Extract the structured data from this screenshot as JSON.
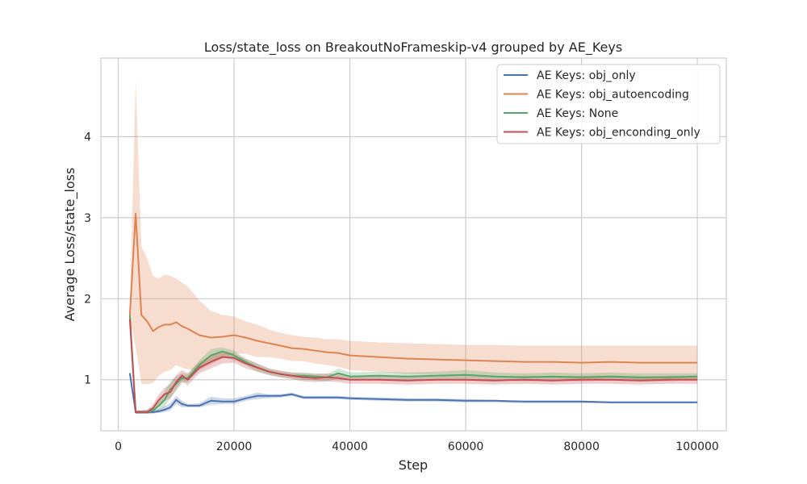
{
  "chart_data": {
    "type": "line",
    "title": "Loss/state_loss on BreakoutNoFrameskip-v4 grouped by AE_Keys",
    "xlabel": "Step",
    "ylabel": "Average Loss/state_loss",
    "xlim": [
      -3000,
      105000
    ],
    "ylim": [
      0.37,
      4.97
    ],
    "xticks": [
      0,
      20000,
      40000,
      60000,
      80000,
      100000
    ],
    "xtick_labels": [
      "0",
      "20000",
      "40000",
      "60000",
      "80000",
      "100000"
    ],
    "yticks": [
      1,
      2,
      3,
      4
    ],
    "ytick_labels": [
      "1",
      "2",
      "3",
      "4"
    ],
    "grid": true,
    "legend_position": "top-right",
    "series": [
      {
        "name": "AE Keys: obj_only",
        "color": "#4c72b0",
        "x": [
          2000,
          3000,
          4000,
          5000,
          6000,
          7000,
          8000,
          9000,
          10000,
          11000,
          12000,
          14000,
          16000,
          18000,
          20000,
          22000,
          24000,
          26000,
          28000,
          30000,
          32000,
          34000,
          36000,
          38000,
          40000,
          45000,
          50000,
          55000,
          60000,
          65000,
          70000,
          75000,
          80000,
          85000,
          90000,
          95000,
          100000
        ],
        "y": [
          1.08,
          0.6,
          0.6,
          0.6,
          0.6,
          0.61,
          0.63,
          0.66,
          0.75,
          0.7,
          0.68,
          0.68,
          0.74,
          0.73,
          0.73,
          0.77,
          0.8,
          0.8,
          0.8,
          0.82,
          0.78,
          0.78,
          0.78,
          0.78,
          0.77,
          0.76,
          0.75,
          0.75,
          0.74,
          0.74,
          0.73,
          0.73,
          0.73,
          0.72,
          0.72,
          0.72,
          0.72
        ],
        "upper": [
          1.1,
          0.62,
          0.62,
          0.62,
          0.63,
          0.64,
          0.67,
          0.71,
          0.8,
          0.74,
          0.7,
          0.71,
          0.79,
          0.77,
          0.77,
          0.8,
          0.84,
          0.82,
          0.82,
          0.84,
          0.8,
          0.8,
          0.8,
          0.8,
          0.79,
          0.78,
          0.77,
          0.77,
          0.76,
          0.75,
          0.74,
          0.74,
          0.74,
          0.73,
          0.73,
          0.73,
          0.73
        ],
        "lower": [
          1.06,
          0.58,
          0.58,
          0.58,
          0.58,
          0.59,
          0.6,
          0.62,
          0.7,
          0.66,
          0.66,
          0.66,
          0.69,
          0.7,
          0.7,
          0.74,
          0.76,
          0.77,
          0.78,
          0.8,
          0.76,
          0.76,
          0.76,
          0.76,
          0.75,
          0.74,
          0.73,
          0.73,
          0.72,
          0.72,
          0.71,
          0.71,
          0.71,
          0.71,
          0.71,
          0.71,
          0.71
        ]
      },
      {
        "name": "AE Keys: obj_autoencoding",
        "color": "#dd8452",
        "x": [
          2000,
          3000,
          4000,
          5000,
          6000,
          7000,
          8000,
          9000,
          10000,
          11000,
          12000,
          14000,
          16000,
          18000,
          20000,
          22000,
          24000,
          26000,
          28000,
          30000,
          32000,
          34000,
          36000,
          38000,
          40000,
          45000,
          50000,
          55000,
          60000,
          65000,
          70000,
          75000,
          80000,
          85000,
          90000,
          95000,
          100000
        ],
        "y": [
          1.8,
          3.05,
          1.8,
          1.72,
          1.6,
          1.65,
          1.68,
          1.68,
          1.71,
          1.66,
          1.63,
          1.55,
          1.52,
          1.53,
          1.55,
          1.52,
          1.48,
          1.45,
          1.42,
          1.39,
          1.38,
          1.36,
          1.34,
          1.33,
          1.3,
          1.28,
          1.26,
          1.25,
          1.24,
          1.23,
          1.22,
          1.22,
          1.21,
          1.22,
          1.21,
          1.21,
          1.21
        ],
        "upper": [
          1.85,
          4.7,
          2.65,
          2.5,
          2.28,
          2.25,
          2.3,
          2.28,
          2.25,
          2.2,
          2.15,
          1.98,
          1.85,
          1.8,
          1.78,
          1.72,
          1.68,
          1.62,
          1.58,
          1.55,
          1.53,
          1.52,
          1.5,
          1.5,
          1.48,
          1.46,
          1.45,
          1.44,
          1.43,
          1.43,
          1.42,
          1.42,
          1.42,
          1.42,
          1.42,
          1.42,
          1.42
        ],
        "lower": [
          1.75,
          1.4,
          0.95,
          0.94,
          0.96,
          1.05,
          1.1,
          1.12,
          1.18,
          1.15,
          1.13,
          1.12,
          1.19,
          1.26,
          1.32,
          1.32,
          1.28,
          1.28,
          1.26,
          1.23,
          1.23,
          1.2,
          1.18,
          1.16,
          1.12,
          1.1,
          1.07,
          1.06,
          1.05,
          1.03,
          1.02,
          1.02,
          1.0,
          1.02,
          1.0,
          1.0,
          1.0
        ]
      },
      {
        "name": "AE Keys: None",
        "color": "#55a868",
        "x": [
          2000,
          3000,
          4000,
          5000,
          6000,
          7000,
          8000,
          9000,
          10000,
          11000,
          12000,
          14000,
          16000,
          18000,
          20000,
          22000,
          24000,
          26000,
          28000,
          30000,
          32000,
          34000,
          36000,
          38000,
          40000,
          45000,
          50000,
          55000,
          60000,
          65000,
          70000,
          75000,
          80000,
          85000,
          90000,
          95000,
          100000
        ],
        "y": [
          1.8,
          0.6,
          0.6,
          0.6,
          0.62,
          0.68,
          0.75,
          0.88,
          0.95,
          1.02,
          1.02,
          1.18,
          1.3,
          1.35,
          1.3,
          1.22,
          1.15,
          1.1,
          1.07,
          1.05,
          1.05,
          1.04,
          1.03,
          1.08,
          1.04,
          1.05,
          1.04,
          1.05,
          1.06,
          1.04,
          1.03,
          1.04,
          1.03,
          1.04,
          1.03,
          1.03,
          1.04
        ],
        "upper": [
          1.82,
          0.62,
          0.62,
          0.63,
          0.66,
          0.75,
          0.85,
          0.98,
          1.04,
          1.08,
          1.07,
          1.24,
          1.38,
          1.4,
          1.36,
          1.26,
          1.2,
          1.14,
          1.11,
          1.09,
          1.09,
          1.08,
          1.07,
          1.14,
          1.09,
          1.1,
          1.09,
          1.1,
          1.12,
          1.09,
          1.08,
          1.09,
          1.08,
          1.09,
          1.08,
          1.08,
          1.08
        ],
        "lower": [
          1.78,
          0.58,
          0.58,
          0.58,
          0.59,
          0.62,
          0.66,
          0.78,
          0.86,
          0.96,
          0.97,
          1.12,
          1.22,
          1.28,
          1.24,
          1.18,
          1.1,
          1.06,
          1.03,
          1.01,
          1.0,
          0.99,
          0.98,
          1.02,
          0.99,
          1.0,
          0.99,
          1.0,
          1.0,
          0.99,
          0.98,
          0.99,
          0.98,
          0.99,
          0.98,
          0.98,
          1.0
        ]
      },
      {
        "name": "AE Keys: obj_enconding_only",
        "color": "#c44e52",
        "x": [
          2000,
          3000,
          4000,
          5000,
          6000,
          7000,
          8000,
          9000,
          10000,
          11000,
          12000,
          14000,
          16000,
          18000,
          20000,
          22000,
          24000,
          26000,
          28000,
          30000,
          32000,
          34000,
          36000,
          38000,
          40000,
          45000,
          50000,
          55000,
          60000,
          65000,
          70000,
          75000,
          80000,
          85000,
          90000,
          95000,
          100000
        ],
        "y": [
          1.75,
          0.6,
          0.6,
          0.6,
          0.65,
          0.75,
          0.82,
          0.85,
          0.97,
          1.05,
          1.0,
          1.15,
          1.22,
          1.28,
          1.27,
          1.2,
          1.15,
          1.1,
          1.07,
          1.05,
          1.03,
          1.02,
          1.03,
          1.02,
          1.0,
          1.0,
          0.99,
          1.0,
          1.0,
          0.99,
          1.0,
          0.99,
          1.0,
          1.0,
          0.99,
          1.0,
          1.0
        ],
        "upper": [
          1.78,
          0.62,
          0.62,
          0.63,
          0.7,
          0.82,
          0.9,
          0.95,
          1.06,
          1.12,
          1.08,
          1.22,
          1.3,
          1.35,
          1.33,
          1.26,
          1.2,
          1.14,
          1.11,
          1.09,
          1.08,
          1.07,
          1.08,
          1.07,
          1.05,
          1.05,
          1.05,
          1.05,
          1.06,
          1.04,
          1.05,
          1.04,
          1.05,
          1.05,
          1.04,
          1.05,
          1.05
        ],
        "lower": [
          1.72,
          0.58,
          0.58,
          0.58,
          0.6,
          0.68,
          0.74,
          0.76,
          0.88,
          0.98,
          0.93,
          1.08,
          1.14,
          1.2,
          1.21,
          1.14,
          1.1,
          1.06,
          1.03,
          1.01,
          0.98,
          0.97,
          0.98,
          0.97,
          0.95,
          0.95,
          0.94,
          0.95,
          0.95,
          0.94,
          0.95,
          0.94,
          0.95,
          0.95,
          0.94,
          0.95,
          0.95
        ]
      }
    ]
  }
}
